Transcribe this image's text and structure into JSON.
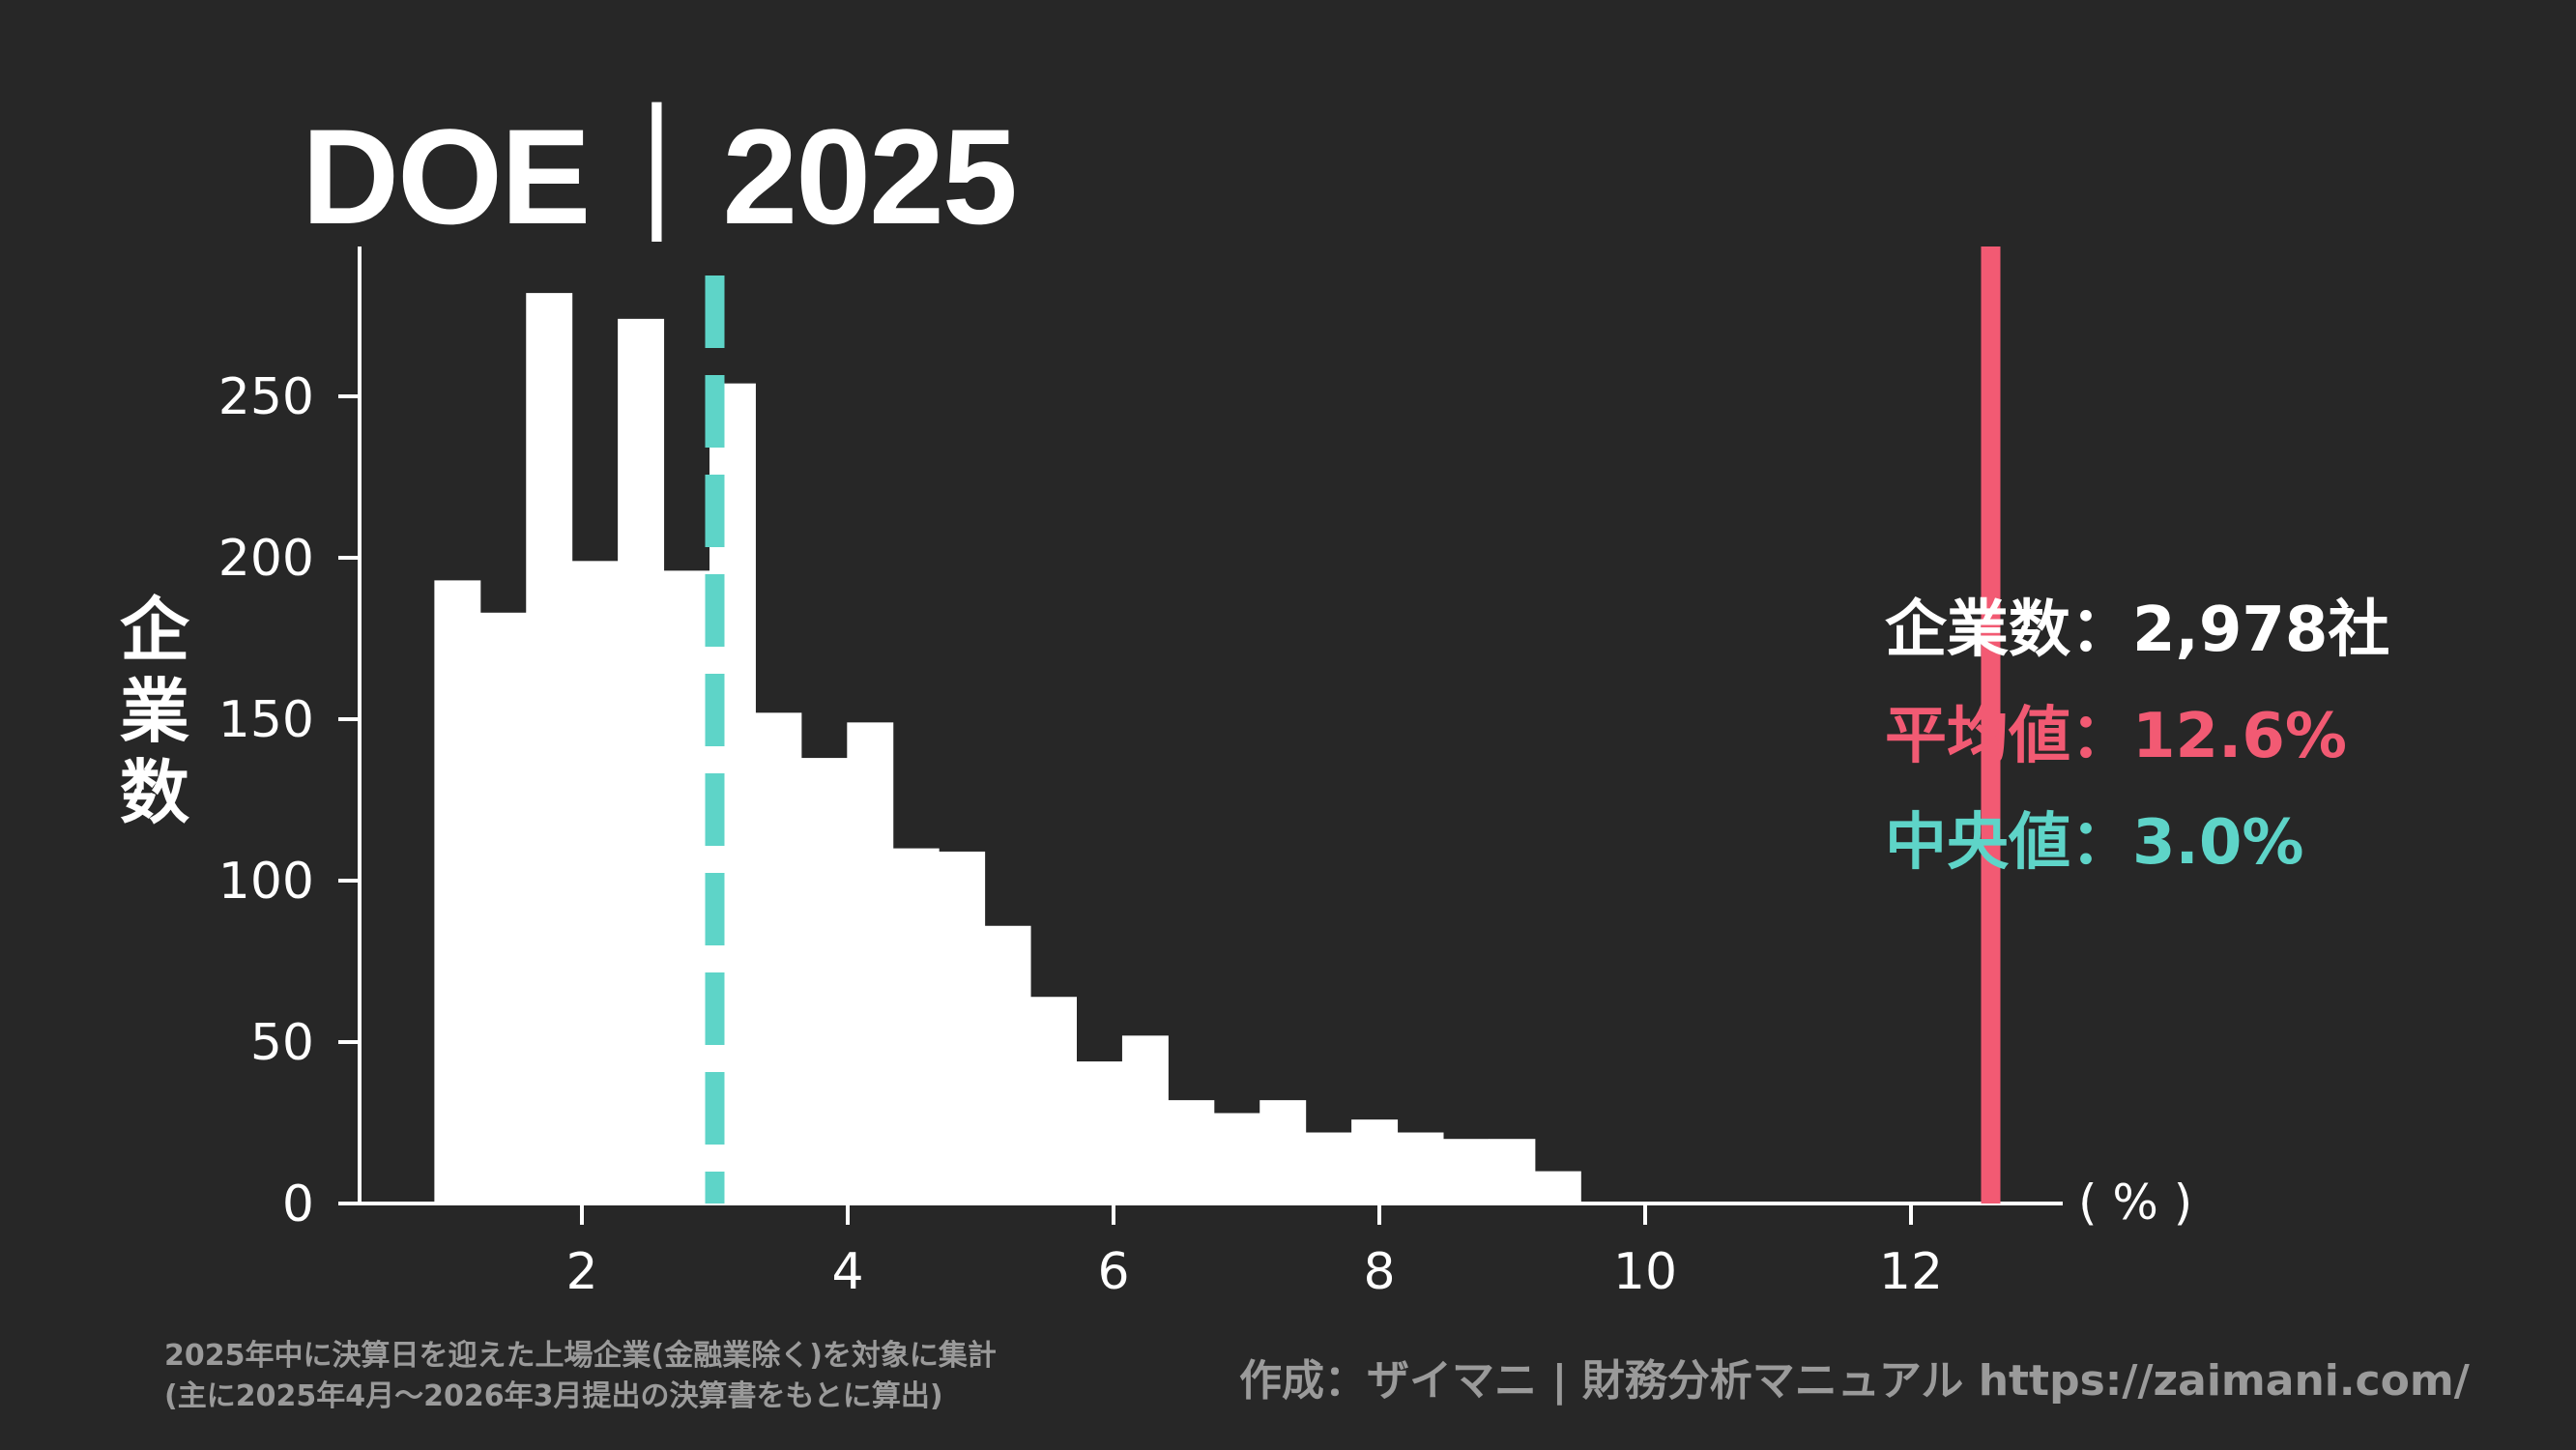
{
  "title": "DOE｜2025",
  "colors": {
    "background": "#272727",
    "bars": "#ffffff",
    "mean": "#f25a73",
    "median": "#5ed4c8",
    "footer": "#9a9a9a"
  },
  "annotations": {
    "count": "企業数：2,978社",
    "mean": "平均値：12.6%",
    "median": "中央値：3.0%"
  },
  "footer": {
    "note_line1": "2025年中に決算日を迎えた上場企業(金融業除く)を対象に集計",
    "note_line2": "(主に2025年4月～2026年3月提出の決算書をもとに算出)",
    "credit": "作成：ザイマニ | 財務分析マニュアル https://zaimani.com/"
  },
  "chart_data": {
    "type": "bar",
    "title": "DOE｜2025",
    "xlabel": "( % )",
    "ylabel": "企業数",
    "bin_start": 0.89,
    "bin_width": 0.345,
    "values": [
      193,
      183,
      282,
      199,
      274,
      196,
      254,
      152,
      138,
      149,
      110,
      109,
      86,
      64,
      44,
      52,
      32,
      28,
      32,
      22,
      26,
      22,
      20,
      20,
      10
    ],
    "xlim": [
      0,
      13.2
    ],
    "ylim": [
      0,
      298
    ],
    "xticks": [
      2,
      4,
      6,
      8,
      10,
      12
    ],
    "yticks": [
      0,
      50,
      100,
      150,
      200,
      250
    ],
    "mean": 12.6,
    "median": 3.0,
    "grid": false,
    "legend": "none"
  }
}
